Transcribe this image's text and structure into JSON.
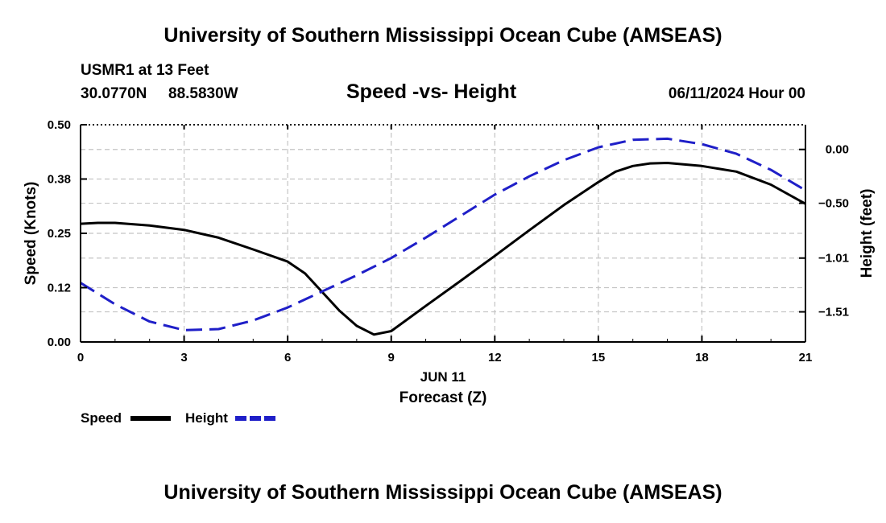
{
  "page": {
    "title": "University of Southern Mississippi Ocean Cube (AMSEAS)",
    "footer_title": "University of Southern Mississippi Ocean Cube (AMSEAS)"
  },
  "header": {
    "station": "USMR1 at 13 Feet",
    "latitude": "30.0770N",
    "longitude": "88.5830W",
    "plot_title": "Speed -vs- Height",
    "run_time": "06/11/2024 Hour 00"
  },
  "chart_data": {
    "type": "line",
    "title": "Speed -vs- Height",
    "xlabel": "Forecast (Z)",
    "xlabel_date": "JUN 11",
    "ylabel": "Speed (Knots)",
    "y2label": "Height (feet)",
    "xlim": [
      0,
      21
    ],
    "ylim": [
      0,
      0.5
    ],
    "y2lim": [
      -1.79,
      0.23
    ],
    "x_ticks": [
      0,
      3,
      6,
      9,
      12,
      15,
      18,
      21
    ],
    "x_tick_labels": [
      "0",
      "3",
      "6",
      "9",
      "12",
      "15",
      "18",
      "21"
    ],
    "y_ticks": [
      0,
      0.125,
      0.25,
      0.375,
      0.5
    ],
    "y_tick_labels": [
      "0.00",
      "0.12",
      "0.25",
      "0.38",
      "0.50"
    ],
    "y2_ticks": [
      0.0,
      -0.5,
      -1.01,
      -1.51
    ],
    "y2_tick_labels": [
      "0.00",
      "−0.50",
      "−1.01",
      "−1.51"
    ],
    "grid": true,
    "legend_position": "bottom-left",
    "series": [
      {
        "name": "Speed",
        "axis": "left",
        "color": "#000000",
        "dash": "solid",
        "x": [
          0,
          0.5,
          1,
          2,
          3,
          4,
          5,
          6,
          6.5,
          7,
          7.5,
          8,
          8.5,
          9,
          10,
          11,
          12,
          13,
          14,
          15,
          15.5,
          16,
          16.5,
          17,
          18,
          19,
          20,
          21
        ],
        "values": [
          0.272,
          0.274,
          0.274,
          0.268,
          0.258,
          0.24,
          0.213,
          0.185,
          0.158,
          0.115,
          0.072,
          0.037,
          0.017,
          0.025,
          0.083,
          0.14,
          0.198,
          0.257,
          0.315,
          0.368,
          0.392,
          0.405,
          0.411,
          0.412,
          0.405,
          0.392,
          0.362,
          0.318
        ]
      },
      {
        "name": "Height",
        "axis": "right",
        "color": "#1f1fc8",
        "dash": "dashed",
        "x": [
          0,
          1,
          2,
          3,
          4,
          5,
          6,
          7,
          8,
          9,
          10,
          11,
          12,
          13,
          14,
          15,
          16,
          17,
          18,
          19,
          20,
          21
        ],
        "values": [
          -1.24,
          -1.44,
          -1.6,
          -1.68,
          -1.67,
          -1.59,
          -1.47,
          -1.32,
          -1.17,
          -1.01,
          -0.82,
          -0.62,
          -0.42,
          -0.25,
          -0.1,
          0.02,
          0.09,
          0.1,
          0.05,
          -0.04,
          -0.19,
          -0.38
        ]
      }
    ]
  }
}
